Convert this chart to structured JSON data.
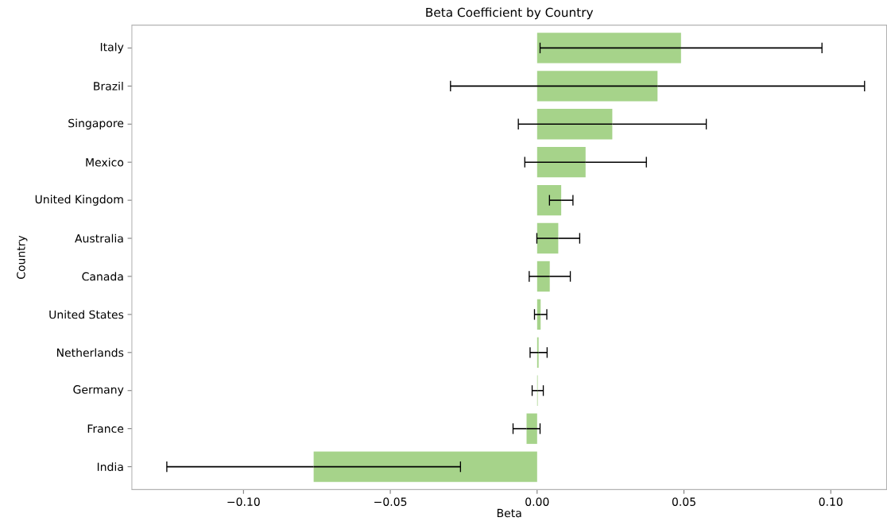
{
  "chart_data": {
    "type": "bar",
    "orientation": "horizontal",
    "title": "Beta Coefficient by Country",
    "xlabel": "Beta",
    "ylabel": "Country",
    "categories": [
      "Italy",
      "Brazil",
      "Singapore",
      "Mexico",
      "United Kingdom",
      "Australia",
      "Canada",
      "United States",
      "Netherlands",
      "Germany",
      "France",
      "India"
    ],
    "values": [
      0.049,
      0.041,
      0.0256,
      0.0165,
      0.0082,
      0.0072,
      0.0043,
      0.0012,
      0.0005,
      0.0002,
      -0.0036,
      -0.0761
    ],
    "errors": [
      0.048,
      0.0705,
      0.032,
      0.0207,
      0.004,
      0.0073,
      0.007,
      0.0021,
      0.0029,
      0.0019,
      0.0046,
      0.05
    ],
    "color": "#a6d38a",
    "xlim": [
      -0.138,
      0.119
    ],
    "xticks": [
      {
        "value": -0.1,
        "label": "−0.10"
      },
      {
        "value": -0.05,
        "label": "−0.05"
      },
      {
        "value": 0,
        "label": "0.00"
      },
      {
        "value": 0.05,
        "label": "0.05"
      },
      {
        "value": 0.1,
        "label": "0.10"
      }
    ]
  }
}
